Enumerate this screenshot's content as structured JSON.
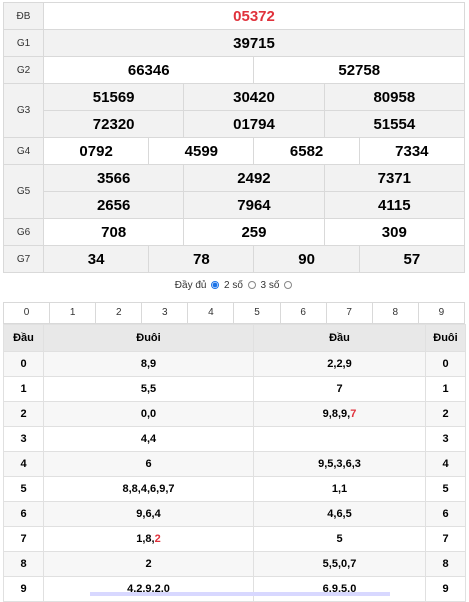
{
  "prizes": {
    "db": {
      "label": "ĐB",
      "values": [
        "05372"
      ]
    },
    "g1": {
      "label": "G1",
      "values": [
        "39715"
      ]
    },
    "g2": {
      "label": "G2",
      "values": [
        "66346",
        "52758"
      ]
    },
    "g3": {
      "label": "G3",
      "values": [
        "51569",
        "30420",
        "80958",
        "72320",
        "01794",
        "51554"
      ]
    },
    "g4": {
      "label": "G4",
      "values": [
        "0792",
        "4599",
        "6582",
        "7334"
      ]
    },
    "g5": {
      "label": "G5",
      "values": [
        "3566",
        "2492",
        "7371",
        "2656",
        "7964",
        "4115"
      ]
    },
    "g6": {
      "label": "G6",
      "values": [
        "708",
        "259",
        "309"
      ]
    },
    "g7": {
      "label": "G7",
      "values": [
        "34",
        "78",
        "90",
        "57"
      ]
    }
  },
  "mode": {
    "full": "Đầy đủ",
    "two": "2 số",
    "three": "3 số"
  },
  "digits": [
    "0",
    "1",
    "2",
    "3",
    "4",
    "5",
    "6",
    "7",
    "8",
    "9"
  ],
  "loto": {
    "headers": [
      "Đầu",
      "Đuôi",
      "Đầu",
      "Đuôi"
    ],
    "rows": [
      {
        "d": "0",
        "tail": "8,9",
        "head": "2,2,9",
        "t": "0"
      },
      {
        "d": "1",
        "tail": "5,5",
        "head": "7",
        "t": "1"
      },
      {
        "d": "2",
        "tail": "0,0",
        "head": "9,8,9,",
        "head_red": "7",
        "t": "2"
      },
      {
        "d": "3",
        "tail": "4,4",
        "head": "",
        "t": "3"
      },
      {
        "d": "4",
        "tail": "6",
        "head": "9,5,3,6,3",
        "t": "4"
      },
      {
        "d": "5",
        "tail": "8,8,4,6,9,7",
        "head": "1,1",
        "t": "5"
      },
      {
        "d": "6",
        "tail": "9,6,4",
        "head": "4,6,5",
        "t": "6"
      },
      {
        "d": "7",
        "tail": "1,8,",
        "tail_red": "2",
        "head": "5",
        "t": "7"
      },
      {
        "d": "8",
        "tail": "2",
        "head": "5,5,0,7",
        "t": "8"
      },
      {
        "d": "9",
        "tail": "4,2,9,2,0",
        "head": "6,9,5,0",
        "t": "9"
      }
    ]
  }
}
